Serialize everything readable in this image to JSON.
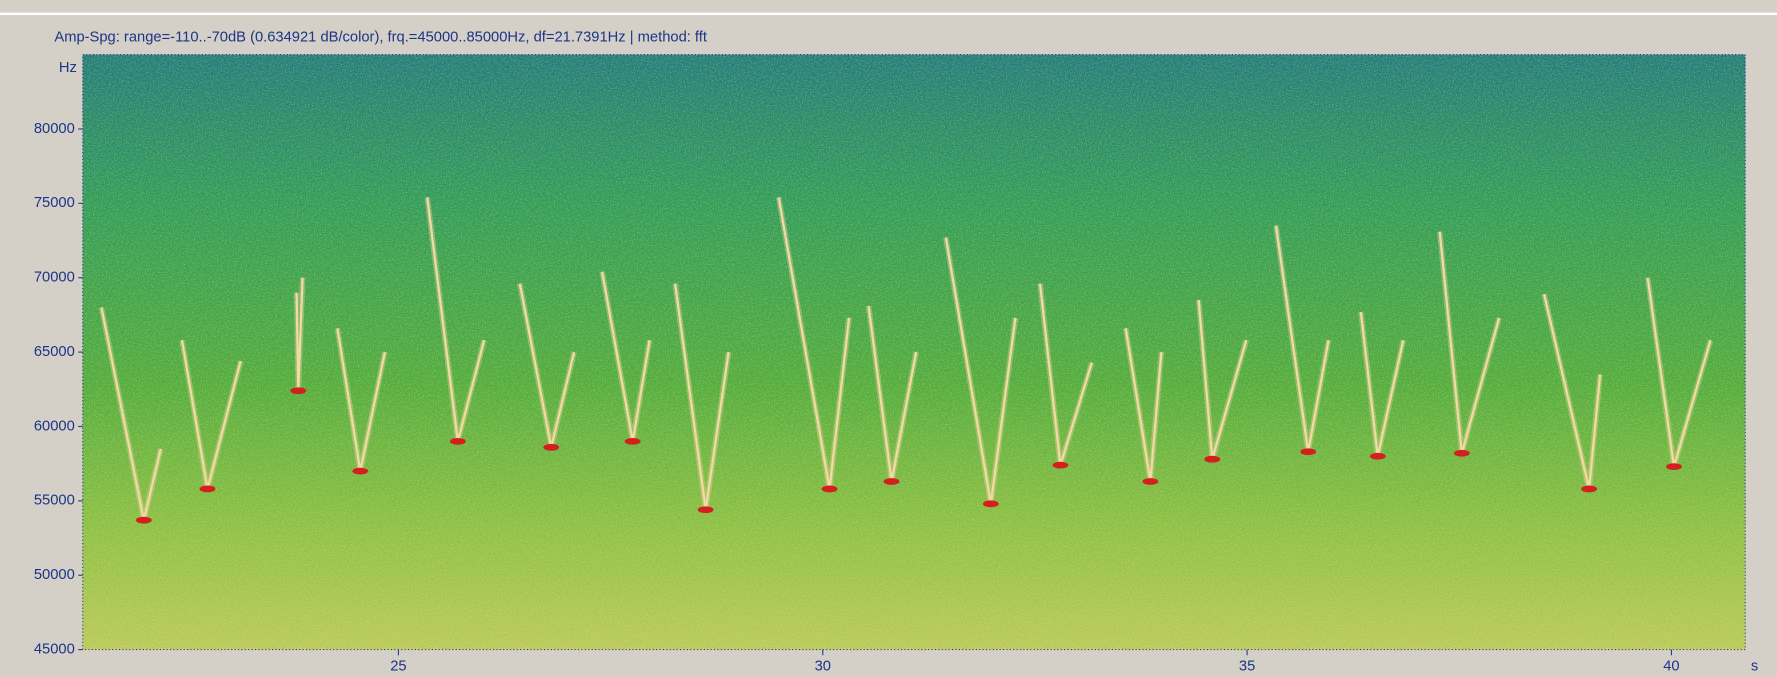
{
  "chart_data": {
    "type": "spectrogram",
    "title": "Amp-Spg: range=-110..-70dB (0.634921 dB/color), frq.=45000..85000Hz, df=21.7391Hz | method: fft",
    "y_unit": "Hz",
    "x_unit": "s",
    "xlim": [
      21.28,
      40.87
    ],
    "ylim": [
      45000,
      85000
    ],
    "xticks": [
      25,
      30,
      35,
      40
    ],
    "yticks": [
      45000,
      50000,
      55000,
      60000,
      65000,
      70000,
      75000,
      80000
    ],
    "color": "#f3d9a4",
    "min_color": "#d41f1f",
    "series": [
      {
        "x": [
          21.5,
          22.0,
          22.2
        ],
        "values": [
          68000,
          53700,
          58500
        ]
      },
      {
        "x": [
          22.45,
          22.75,
          23.14
        ],
        "values": [
          65800,
          55800,
          64400
        ]
      },
      {
        "x": [
          23.8,
          23.82,
          23.87
        ],
        "values": [
          69000,
          62400,
          70000
        ]
      },
      {
        "x": [
          24.28,
          24.55,
          24.84
        ],
        "values": [
          66600,
          57000,
          65000
        ]
      },
      {
        "x": [
          25.34,
          25.7,
          26.01
        ],
        "values": [
          75400,
          59000,
          65800
        ]
      },
      {
        "x": [
          26.43,
          26.8,
          27.07
        ],
        "values": [
          69600,
          58600,
          65000
        ]
      },
      {
        "x": [
          27.4,
          27.76,
          27.96
        ],
        "values": [
          70400,
          59000,
          65800
        ]
      },
      {
        "x": [
          28.26,
          28.62,
          28.89
        ],
        "values": [
          69600,
          54400,
          65000
        ]
      },
      {
        "x": [
          29.48,
          30.08,
          30.31
        ],
        "values": [
          75400,
          55800,
          67300
        ]
      },
      {
        "x": [
          30.54,
          30.81,
          31.1
        ],
        "values": [
          68100,
          56300,
          65000
        ]
      },
      {
        "x": [
          31.45,
          31.98,
          32.27
        ],
        "values": [
          72700,
          54800,
          67300
        ]
      },
      {
        "x": [
          32.56,
          32.8,
          33.17
        ],
        "values": [
          69600,
          57400,
          64300
        ]
      },
      {
        "x": [
          33.57,
          33.86,
          33.99
        ],
        "values": [
          66600,
          56300,
          65000
        ]
      },
      {
        "x": [
          34.43,
          34.59,
          34.99
        ],
        "values": [
          68500,
          57800,
          65800
        ]
      },
      {
        "x": [
          35.34,
          35.72,
          35.96
        ],
        "values": [
          73500,
          58300,
          65800
        ]
      },
      {
        "x": [
          36.34,
          36.54,
          36.84
        ],
        "values": [
          67700,
          58000,
          65800
        ]
      },
      {
        "x": [
          37.27,
          37.53,
          37.97
        ],
        "values": [
          73100,
          58200,
          67300
        ]
      },
      {
        "x": [
          38.5,
          39.03,
          39.16
        ],
        "values": [
          68900,
          55800,
          63500
        ]
      },
      {
        "x": [
          39.72,
          40.03,
          40.46
        ],
        "values": [
          70000,
          57300,
          65800
        ]
      }
    ]
  }
}
